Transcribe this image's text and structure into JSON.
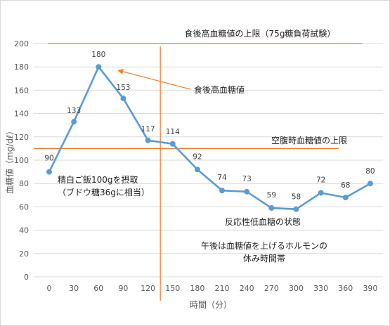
{
  "chart_data": {
    "type": "line",
    "xlabel": "時間（分）",
    "ylabel": "血糖値（mg/dℓ）",
    "x": [
      0,
      30,
      60,
      90,
      120,
      150,
      180,
      210,
      240,
      270,
      300,
      330,
      360,
      390
    ],
    "x_ticks": [
      "0",
      "30",
      "60",
      "90",
      "120",
      "150",
      "180",
      "210",
      "240",
      "270",
      "300",
      "330",
      "360",
      "390"
    ],
    "series": [
      {
        "values": [
          90,
          133,
          180,
          153,
          117,
          114,
          92,
          74,
          73,
          59,
          58,
          72,
          68,
          80
        ]
      }
    ],
    "data_labels": [
      "90",
      "133",
      "180",
      "153",
      "117",
      "114",
      "92",
      "74",
      "73",
      "59",
      "58",
      "72",
      "68",
      "80"
    ],
    "ylim": [
      0,
      200
    ],
    "y_ticks": [
      "0",
      "20",
      "40",
      "60",
      "80",
      "100",
      "120",
      "140",
      "160",
      "180",
      "200"
    ],
    "grid": "horizontal",
    "legend": "none",
    "reference_lines": [
      {
        "orientation": "horizontal",
        "value": 200,
        "label": "食後高血糖値の上限（75g糖負荷試験）"
      },
      {
        "orientation": "horizontal",
        "value": 110,
        "label": "空腹時血糖値の上限"
      },
      {
        "orientation": "vertical",
        "value": 135
      }
    ],
    "annotations": {
      "peak": "食後高血糖値",
      "meal_line1": "精白ご飯100gを摂取",
      "meal_line2": "（ブドウ糖36gに相当）",
      "hypo": "反応性低血糖の状態",
      "afternoon_line1": "午後は血糖値を上げるホルモンの",
      "afternoon_line2": "休み時間帯"
    },
    "colors": {
      "series": "#5b9bd5",
      "reference": "#ed7d31",
      "grid": "#d9d9d9",
      "text": "#595959"
    }
  }
}
